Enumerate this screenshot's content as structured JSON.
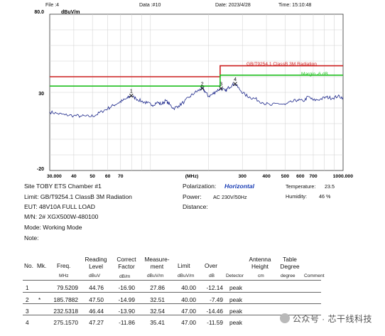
{
  "header": {
    "file": "File :4",
    "data": "Data :#10",
    "date": "Date: 2023/4/28",
    "time": "Time: 15:10:48"
  },
  "chart_data": {
    "type": "line",
    "title": "",
    "ylabel": "dBuV/m",
    "xlabel": "(MHz)",
    "y_top_label": "80.0",
    "ylim": [
      -20,
      80
    ],
    "xlim": [
      30,
      1000
    ],
    "x_scale": "log",
    "y_ticks": [
      "30",
      "-20"
    ],
    "x_ticks": [
      "30.000",
      "40",
      "50",
      "60",
      "70",
      "(MHz)",
      "300",
      "400",
      "500",
      "600",
      "700",
      "1000.000"
    ],
    "limit_lines": [
      {
        "name": "GB/T9254.1 ClassB 3M Radiation",
        "color": "#cc1f1f",
        "segments": [
          [
            30,
            230,
            40
          ],
          [
            230,
            1000,
            47
          ]
        ]
      },
      {
        "name": "Margin -6 dB",
        "color": "#1fbf1f",
        "segments": [
          [
            30,
            230,
            34
          ],
          [
            230,
            1000,
            41
          ]
        ]
      }
    ],
    "markers": [
      {
        "label": "1",
        "x": 79.5209,
        "y": 27.86
      },
      {
        "label": "2",
        "x": 185.7882,
        "y": 32.51
      },
      {
        "label": "3",
        "x": 232.5318,
        "y": 32.54
      },
      {
        "label": "4",
        "x": 275.157,
        "y": 35.41
      }
    ],
    "series": [
      {
        "values": [
          [
            30,
            17.5
          ],
          [
            33,
            16.4
          ],
          [
            36,
            15.6
          ],
          [
            40,
            15.1
          ],
          [
            44,
            14.8
          ],
          [
            48,
            14.5
          ],
          [
            52,
            15.4
          ],
          [
            56,
            17.8
          ],
          [
            60,
            19.6
          ],
          [
            64,
            21.6
          ],
          [
            68,
            23.2
          ],
          [
            72,
            24.8
          ],
          [
            76,
            26.3
          ],
          [
            79.5,
            27.9
          ],
          [
            84,
            26.1
          ],
          [
            90,
            24.3
          ],
          [
            96,
            23.2
          ],
          [
            102,
            21.8
          ],
          [
            108,
            23.6
          ],
          [
            114,
            22.4
          ],
          [
            120,
            24.8
          ],
          [
            126,
            22.1
          ],
          [
            132,
            19.7
          ],
          [
            140,
            21.3
          ],
          [
            150,
            24.1
          ],
          [
            160,
            27.2
          ],
          [
            170,
            29.8
          ],
          [
            180,
            31.6
          ],
          [
            185.8,
            32.5
          ],
          [
            192,
            30.6
          ],
          [
            200,
            27.4
          ],
          [
            210,
            28.8
          ],
          [
            220,
            30.9
          ],
          [
            232.5,
            32.5
          ],
          [
            245,
            30.8
          ],
          [
            255,
            33.2
          ],
          [
            265,
            34.6
          ],
          [
            275.2,
            35.4
          ],
          [
            290,
            31.9
          ],
          [
            310,
            28.4
          ],
          [
            330,
            26.7
          ],
          [
            350,
            25.9
          ],
          [
            380,
            23.6
          ],
          [
            420,
            21.7
          ],
          [
            460,
            22.9
          ],
          [
            500,
            22.1
          ],
          [
            540,
            23.8
          ],
          [
            580,
            25.2
          ],
          [
            620,
            24.3
          ],
          [
            660,
            27.3
          ],
          [
            700,
            24.9
          ],
          [
            760,
            25.6
          ],
          [
            820,
            26.9
          ],
          [
            880,
            26.3
          ],
          [
            940,
            27.5
          ],
          [
            1000,
            26.6
          ]
        ]
      }
    ]
  },
  "info": {
    "site": "Site  TOBY ETS Chamber #1",
    "limit": "Limit: GB/T9254.1 ClassB 3M Radiation",
    "eut": "EUT:  48V10A   FULL LOAD",
    "mn": "M/N:  2#   XGX500W-480100",
    "mode": "Mode:  Working Mode",
    "note": "Note:",
    "polarization_label": "Polarization:",
    "polarization_value": "Horizontal",
    "power_label": "Power:",
    "power_value": "AC 230V/50Hz",
    "distance_label": "Distance:",
    "temperature_label": "Temperature:",
    "temperature_value": "23.5",
    "humidity_label": "Humidity:",
    "humidity_value": "46 %"
  },
  "table": {
    "headers": {
      "no": "No.",
      "mk": "Mk.",
      "freq": "Freq.",
      "reading1": "Reading",
      "reading2": "Level",
      "correct1": "Correct",
      "correct2": "Factor",
      "meas1": "Measure-",
      "meas2": "ment",
      "limit": "Limit",
      "over": "Over",
      "antenna1": "Antenna",
      "antenna2": "Height",
      "table1": "Table",
      "table2": "Degree"
    },
    "units": {
      "freq": "MHz",
      "reading": "dBuV",
      "correct": "dB/m",
      "meas": "dBuV/m",
      "limit": "dBuV/m",
      "over": "dB",
      "detector": "Detector",
      "antenna": "cm",
      "table": "degree",
      "comment": "Comment"
    },
    "rows": [
      {
        "no": "1",
        "mk": "",
        "freq": "79.5209",
        "reading": "44.76",
        "correct": "-16.90",
        "meas": "27.86",
        "limit": "40.00",
        "over": "-12.14",
        "det": "peak"
      },
      {
        "no": "2",
        "mk": "*",
        "freq": "185.7882",
        "reading": "47.50",
        "correct": "-14.99",
        "meas": "32.51",
        "limit": "40.00",
        "over": "-7.49",
        "det": "peak"
      },
      {
        "no": "3",
        "mk": "",
        "freq": "232.5318",
        "reading": "46.44",
        "correct": "-13.90",
        "meas": "32.54",
        "limit": "47.00",
        "over": "-14.46",
        "det": "peak"
      },
      {
        "no": "4",
        "mk": "",
        "freq": "275.1570",
        "reading": "47.27",
        "correct": "-11.86",
        "meas": "35.41",
        "limit": "47.00",
        "over": "-11.59",
        "det": "peak"
      }
    ]
  },
  "watermark": "公众号 · 芯干线科技"
}
